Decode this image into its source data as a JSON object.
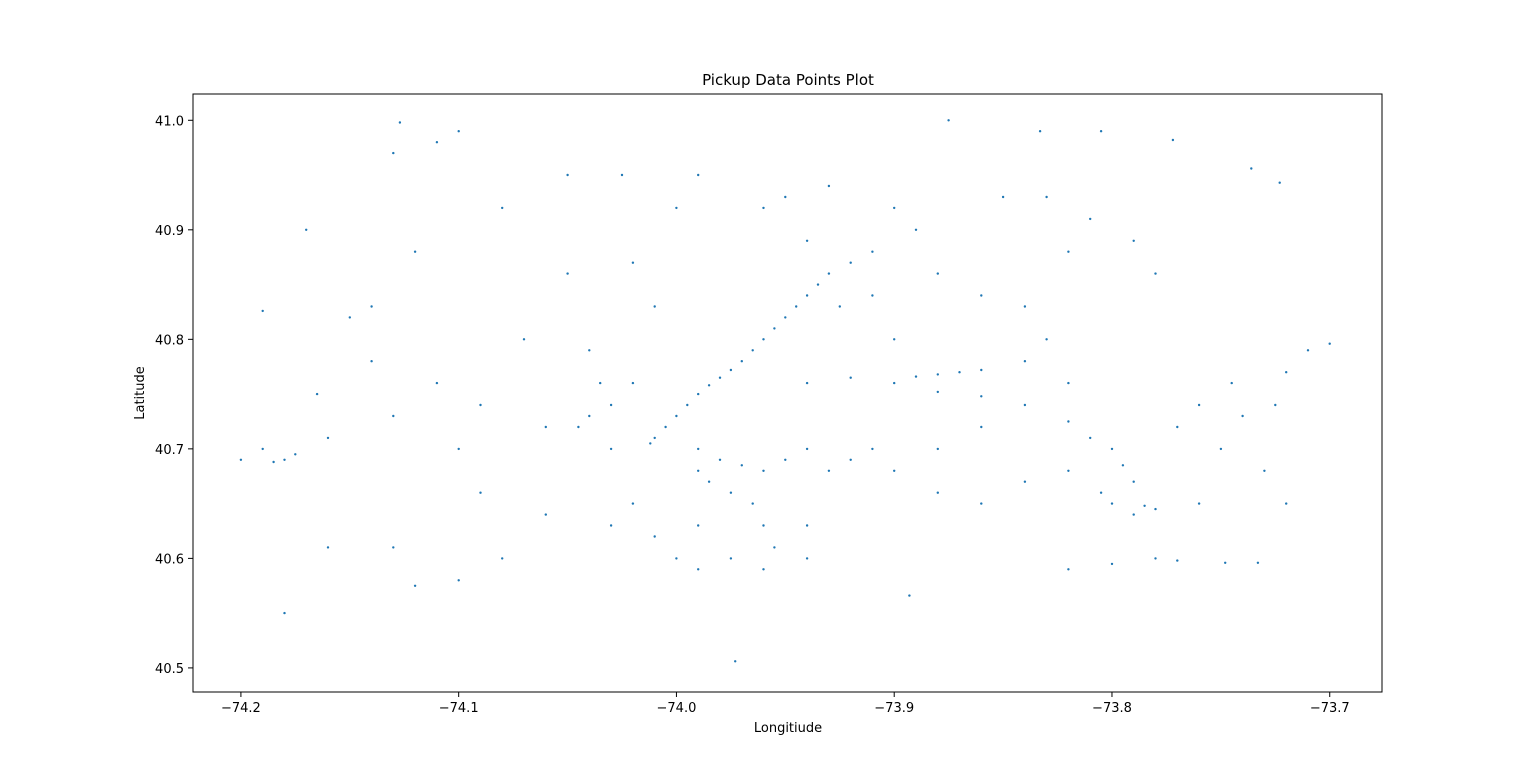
{
  "chart_data": {
    "type": "scatter",
    "title": "Pickup Data Points Plot",
    "xlabel": "Longitiude",
    "ylabel": "Latitude",
    "xlim": [
      -74.222,
      -73.676
    ],
    "ylim": [
      40.478,
      41.024
    ],
    "x_ticks": [
      -74.2,
      -74.1,
      -74.0,
      -73.9,
      -73.8,
      -73.7
    ],
    "x_tick_labels": [
      "−74.2",
      "−74.1",
      "−74.0",
      "−73.9",
      "−73.8",
      "−73.7"
    ],
    "y_ticks": [
      40.5,
      40.6,
      40.7,
      40.8,
      40.9,
      41.0
    ],
    "y_tick_labels": [
      "40.5",
      "40.6",
      "40.7",
      "40.8",
      "40.9",
      "41.0"
    ],
    "grid": false,
    "marker_color": "#1f77b4",
    "series": [
      {
        "points": [
          [
            -73.985,
            40.758
          ],
          [
            -73.99,
            40.75
          ],
          [
            -73.98,
            40.765
          ],
          [
            -73.975,
            40.772
          ],
          [
            -73.995,
            40.74
          ],
          [
            -74.0,
            40.73
          ],
          [
            -74.005,
            40.72
          ],
          [
            -74.01,
            40.71
          ],
          [
            -74.012,
            40.705
          ],
          [
            -73.97,
            40.78
          ],
          [
            -73.965,
            40.79
          ],
          [
            -73.96,
            40.8
          ],
          [
            -73.955,
            40.81
          ],
          [
            -73.95,
            40.82
          ],
          [
            -73.945,
            40.83
          ],
          [
            -73.94,
            40.84
          ],
          [
            -73.935,
            40.85
          ],
          [
            -73.93,
            40.86
          ],
          [
            -73.92,
            40.87
          ],
          [
            -73.91,
            40.88
          ],
          [
            -73.87,
            40.77
          ],
          [
            -73.88,
            40.768
          ],
          [
            -73.89,
            40.766
          ],
          [
            -73.86,
            40.772
          ],
          [
            -73.94,
            40.76
          ],
          [
            -73.92,
            40.765
          ],
          [
            -73.9,
            40.76
          ],
          [
            -73.88,
            40.752
          ],
          [
            -73.86,
            40.748
          ],
          [
            -73.84,
            40.74
          ],
          [
            -73.82,
            40.725
          ],
          [
            -73.81,
            40.71
          ],
          [
            -73.8,
            40.7
          ],
          [
            -73.795,
            40.685
          ],
          [
            -73.79,
            40.67
          ],
          [
            -73.78,
            40.645
          ],
          [
            -73.785,
            40.648
          ],
          [
            -73.79,
            40.64
          ],
          [
            -73.8,
            40.65
          ],
          [
            -73.805,
            40.66
          ],
          [
            -73.99,
            40.7
          ],
          [
            -73.98,
            40.69
          ],
          [
            -73.97,
            40.685
          ],
          [
            -73.96,
            40.68
          ],
          [
            -73.95,
            40.69
          ],
          [
            -73.94,
            40.7
          ],
          [
            -73.93,
            40.68
          ],
          [
            -73.92,
            40.69
          ],
          [
            -73.91,
            40.7
          ],
          [
            -73.99,
            40.68
          ],
          [
            -73.985,
            40.67
          ],
          [
            -73.975,
            40.66
          ],
          [
            -73.965,
            40.65
          ],
          [
            -73.96,
            40.63
          ],
          [
            -73.955,
            40.61
          ],
          [
            -73.975,
            40.6
          ],
          [
            -73.99,
            40.59
          ],
          [
            -73.96,
            40.59
          ],
          [
            -73.94,
            40.6
          ],
          [
            -73.94,
            40.63
          ],
          [
            -74.03,
            40.74
          ],
          [
            -74.04,
            40.73
          ],
          [
            -74.035,
            40.76
          ],
          [
            -74.045,
            40.72
          ],
          [
            -74.02,
            40.76
          ],
          [
            -74.06,
            40.72
          ],
          [
            -74.07,
            40.8
          ],
          [
            -74.05,
            40.86
          ],
          [
            -74.08,
            40.92
          ],
          [
            -74.1,
            40.99
          ],
          [
            -74.13,
            40.97
          ],
          [
            -74.127,
            40.998
          ],
          [
            -74.11,
            40.98
          ],
          [
            -74.18,
            40.69
          ],
          [
            -74.185,
            40.688
          ],
          [
            -74.175,
            40.695
          ],
          [
            -74.19,
            40.7
          ],
          [
            -74.16,
            40.71
          ],
          [
            -74.165,
            40.75
          ],
          [
            -74.15,
            40.82
          ],
          [
            -74.19,
            40.826
          ],
          [
            -74.12,
            40.88
          ],
          [
            -74.17,
            40.9
          ],
          [
            -74.14,
            40.83
          ],
          [
            -74.18,
            40.55
          ],
          [
            -74.12,
            40.575
          ],
          [
            -74.1,
            40.58
          ],
          [
            -74.13,
            40.61
          ],
          [
            -74.16,
            40.61
          ],
          [
            -74.2,
            40.69
          ],
          [
            -73.973,
            40.506
          ],
          [
            -73.893,
            40.566
          ],
          [
            -73.875,
            41.0
          ],
          [
            -73.833,
            40.99
          ],
          [
            -73.805,
            40.99
          ],
          [
            -73.772,
            40.982
          ],
          [
            -73.736,
            40.956
          ],
          [
            -73.723,
            40.943
          ],
          [
            -73.71,
            40.79
          ],
          [
            -73.7,
            40.796
          ],
          [
            -73.72,
            40.77
          ],
          [
            -73.74,
            40.73
          ],
          [
            -73.75,
            40.7
          ],
          [
            -73.73,
            40.68
          ],
          [
            -73.72,
            40.65
          ],
          [
            -73.76,
            40.65
          ],
          [
            -73.78,
            40.6
          ],
          [
            -73.8,
            40.595
          ],
          [
            -73.82,
            40.59
          ],
          [
            -73.733,
            40.596
          ],
          [
            -73.748,
            40.596
          ],
          [
            -73.77,
            40.598
          ],
          [
            -73.84,
            40.83
          ],
          [
            -73.86,
            40.84
          ],
          [
            -73.88,
            40.86
          ],
          [
            -73.89,
            40.9
          ],
          [
            -73.9,
            40.92
          ],
          [
            -73.85,
            40.93
          ],
          [
            -73.83,
            40.93
          ],
          [
            -73.82,
            40.88
          ],
          [
            -73.81,
            40.91
          ],
          [
            -73.79,
            40.89
          ],
          [
            -73.78,
            40.86
          ],
          [
            -73.83,
            40.8
          ],
          [
            -73.84,
            40.78
          ],
          [
            -73.82,
            40.76
          ],
          [
            -73.86,
            40.72
          ],
          [
            -73.88,
            40.7
          ],
          [
            -73.9,
            40.68
          ],
          [
            -73.88,
            40.66
          ],
          [
            -73.86,
            40.65
          ],
          [
            -73.84,
            40.67
          ],
          [
            -73.82,
            40.68
          ],
          [
            -73.9,
            40.8
          ],
          [
            -73.91,
            40.84
          ],
          [
            -73.925,
            40.83
          ],
          [
            -73.94,
            40.89
          ],
          [
            -73.96,
            40.92
          ],
          [
            -74.0,
            40.92
          ],
          [
            -74.02,
            40.87
          ],
          [
            -74.01,
            40.83
          ],
          [
            -74.04,
            40.79
          ],
          [
            -74.03,
            40.7
          ],
          [
            -74.02,
            40.65
          ],
          [
            -74.03,
            40.63
          ],
          [
            -74.01,
            40.62
          ],
          [
            -74.0,
            40.6
          ],
          [
            -73.99,
            40.63
          ],
          [
            -74.06,
            40.64
          ],
          [
            -74.08,
            40.6
          ],
          [
            -74.09,
            40.66
          ],
          [
            -74.1,
            40.7
          ],
          [
            -74.09,
            40.74
          ],
          [
            -74.11,
            40.76
          ],
          [
            -74.13,
            40.73
          ],
          [
            -74.14,
            40.78
          ],
          [
            -74.05,
            40.95
          ],
          [
            -74.025,
            40.95
          ],
          [
            -73.99,
            40.95
          ],
          [
            -73.95,
            40.93
          ],
          [
            -73.93,
            40.94
          ],
          [
            -73.77,
            40.72
          ],
          [
            -73.76,
            40.74
          ],
          [
            -73.745,
            40.76
          ],
          [
            -73.725,
            40.74
          ]
        ]
      }
    ]
  }
}
